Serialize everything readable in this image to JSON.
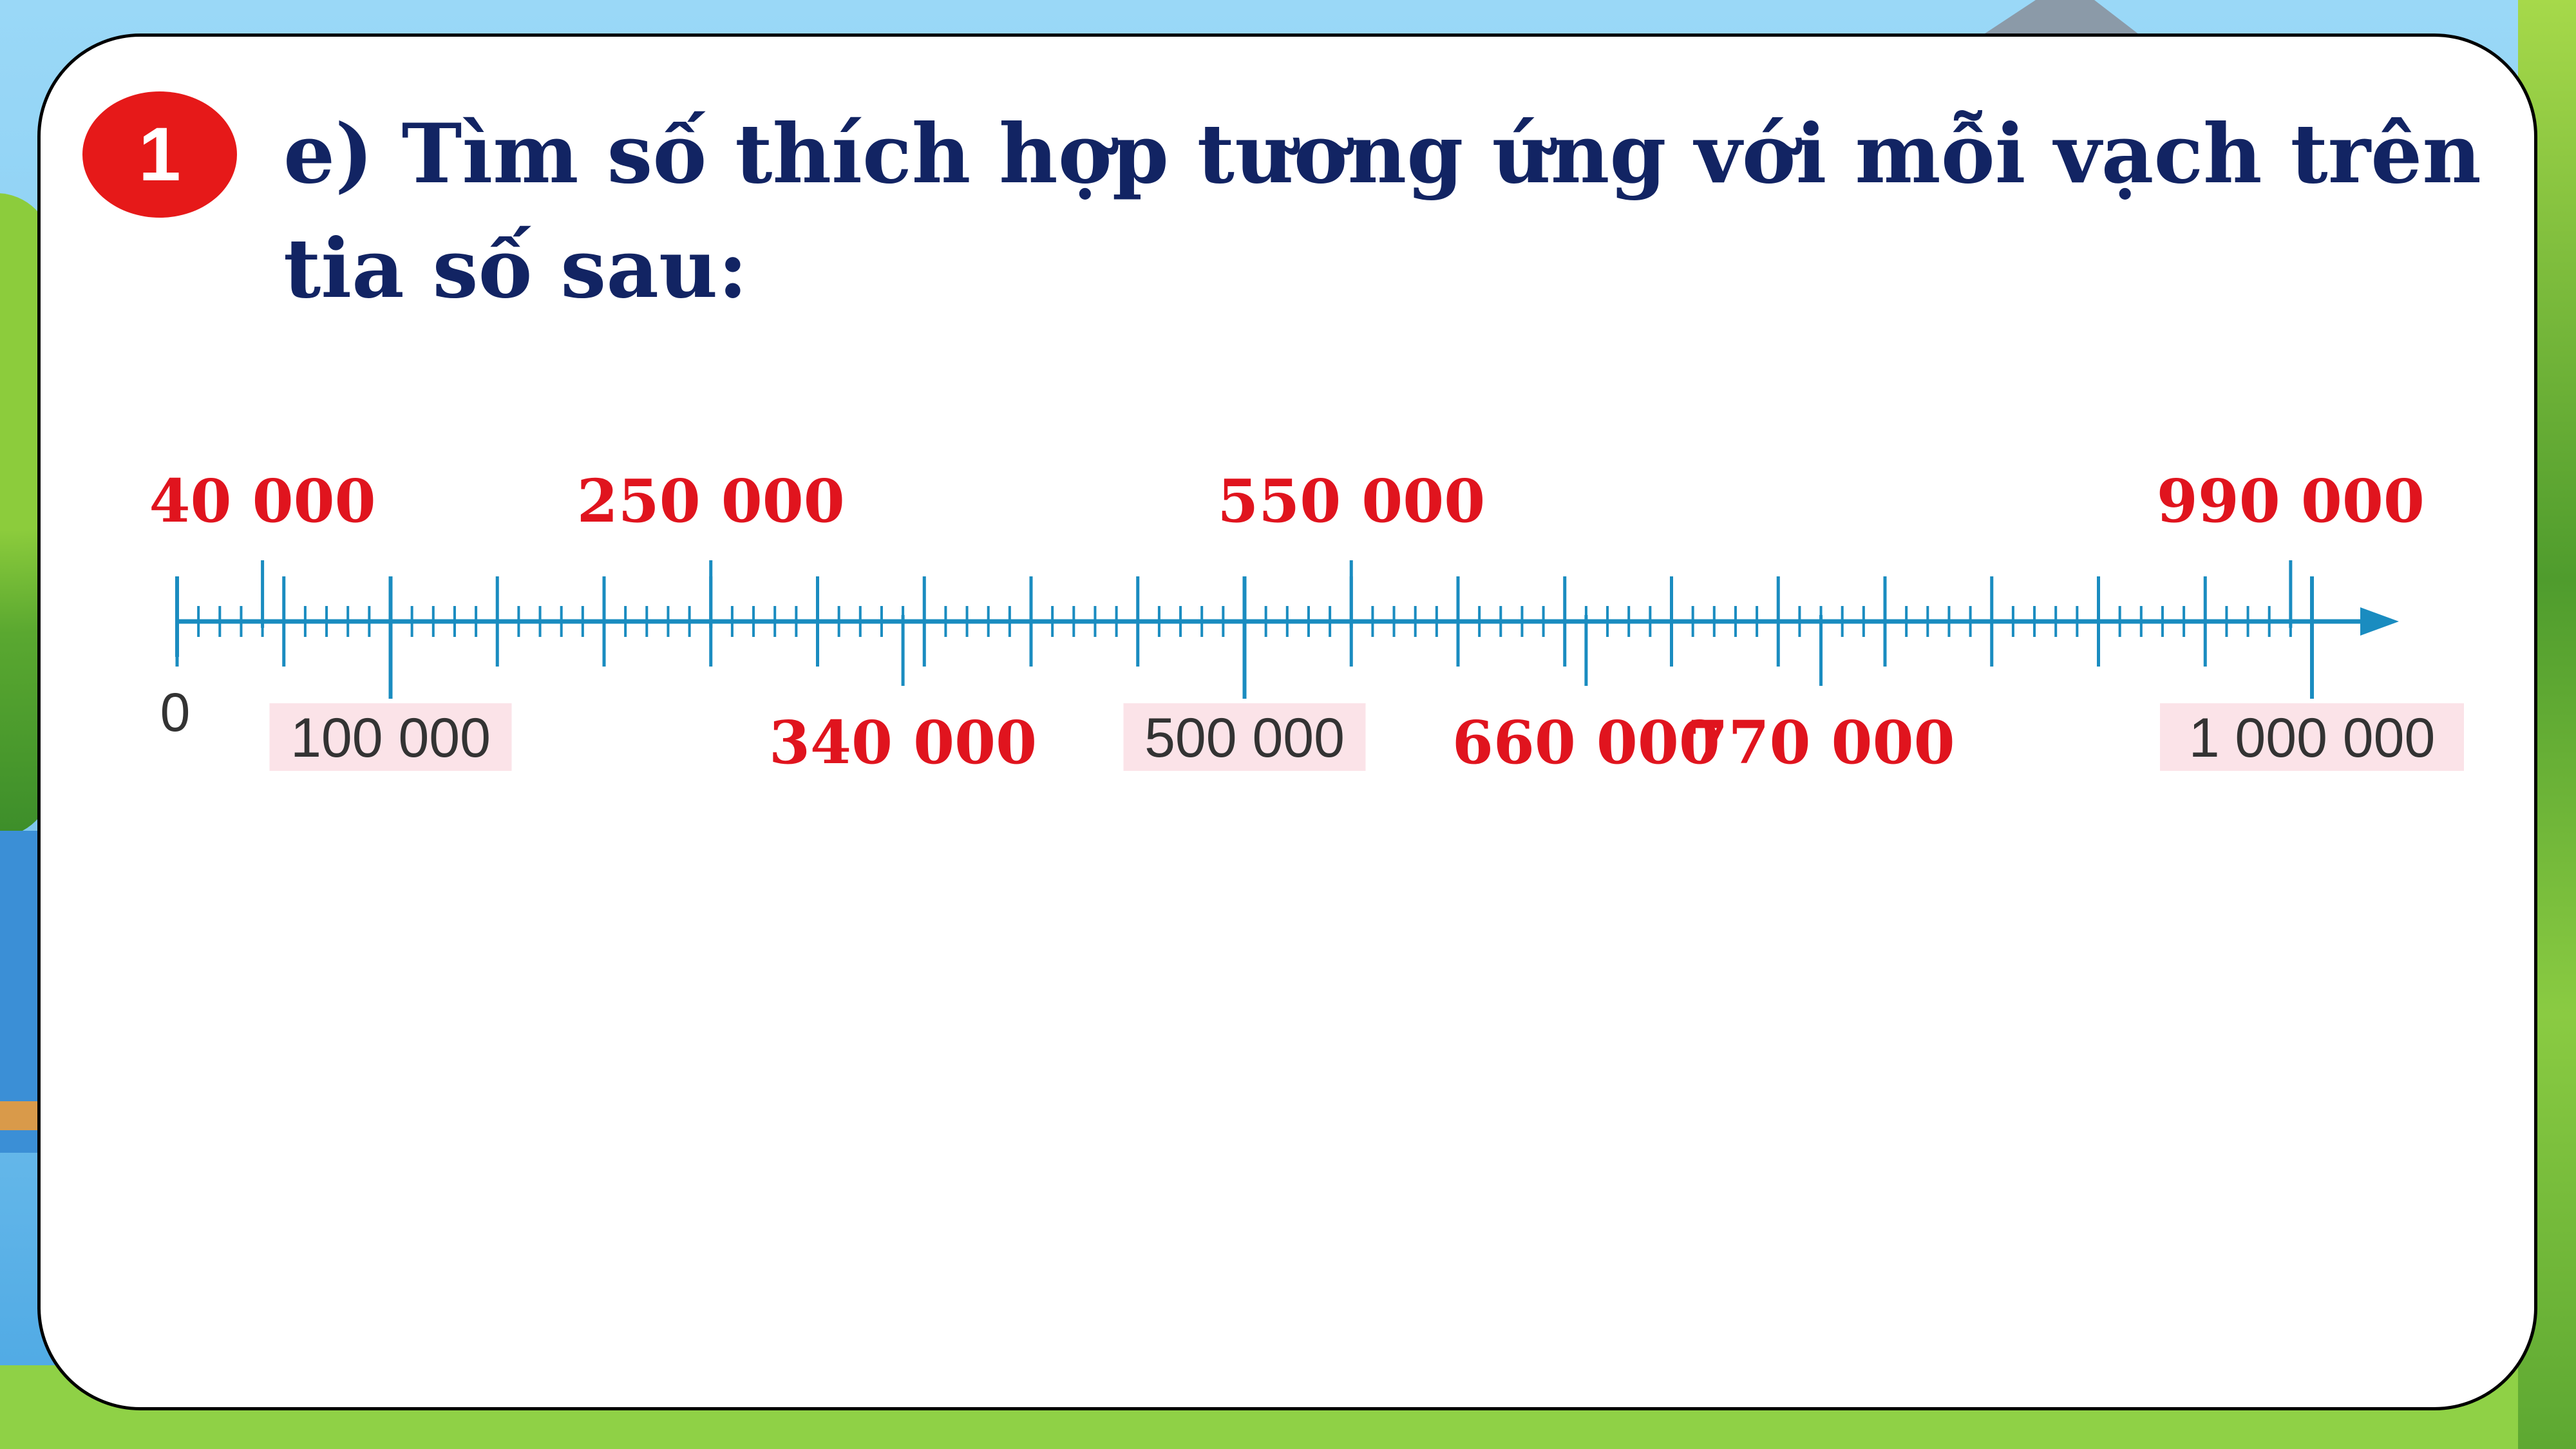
{
  "badge": {
    "number": "1"
  },
  "question": {
    "line1": "e) Tìm số thích hợp tương ứng với mỗi vạch trên",
    "line2": "tia số sau:"
  },
  "number_line": {
    "start_label": "0",
    "end_value": 1000000,
    "major_step": 50000,
    "minor_step": 10000,
    "given_labels": [
      {
        "value": 100000,
        "text": "100 000"
      },
      {
        "value": 500000,
        "text": "500 000"
      },
      {
        "value": 1000000,
        "text": "1 000 000"
      }
    ],
    "answers_above": [
      {
        "value": 40000,
        "text": "40 000"
      },
      {
        "value": 250000,
        "text": "250 000"
      },
      {
        "value": 550000,
        "text": "550 000"
      },
      {
        "value": 990000,
        "text": "990 000"
      }
    ],
    "answers_below": [
      {
        "value": 340000,
        "text": "340 000"
      },
      {
        "value": 660000,
        "text": "660 000"
      },
      {
        "value": 770000,
        "text": "770 000"
      }
    ],
    "colors": {
      "line": "#1a8cc0",
      "answer_text": "#e0141e",
      "given_text": "#333333",
      "given_box": "#fbe3e8",
      "title": "#122463",
      "badge": "#e61919"
    }
  }
}
